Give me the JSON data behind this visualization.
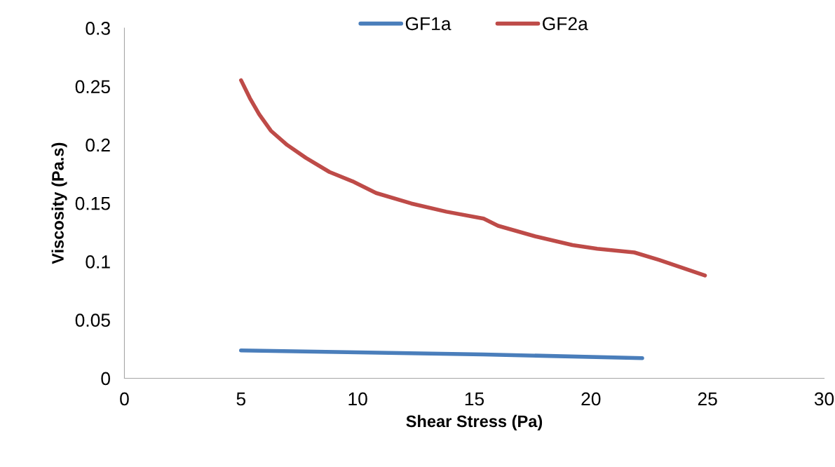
{
  "chart_data": {
    "type": "line",
    "xlabel": "Shear Stress (Pa)",
    "ylabel": "Viscosity (Pa.s)",
    "xlim": [
      0,
      30
    ],
    "xticks": [
      0,
      5,
      10,
      15,
      20,
      25,
      30
    ],
    "ylim": [
      0,
      0.3
    ],
    "yticks": [
      0,
      0.05,
      0.1,
      0.15,
      0.2,
      0.25,
      0.3
    ],
    "grid": false,
    "legend": "top",
    "marker": "none",
    "line_style": "solid",
    "series": [
      {
        "name": "GF1a",
        "color": "#4a7ebb",
        "x": [
          5,
          10,
          15.4,
          22.2
        ],
        "values": [
          0.0239,
          0.0222,
          0.0204,
          0.0173
        ]
      },
      {
        "name": "GF2a",
        "color": "#be4b48",
        "x": [
          5,
          5.38,
          5.78,
          6.28,
          6.98,
          7.78,
          8.79,
          9.78,
          10.79,
          12.3,
          13.8,
          15.4,
          16.02,
          17.61,
          19.21,
          20.27,
          21.86,
          22.92,
          24.89
        ],
        "values": [
          0.2553,
          0.2399,
          0.226,
          0.212,
          0.1998,
          0.1888,
          0.1767,
          0.1687,
          0.1587,
          0.1497,
          0.1427,
          0.1367,
          0.1306,
          0.1216,
          0.1141,
          0.111,
          0.1078,
          0.1014,
          0.0881
        ]
      }
    ]
  }
}
